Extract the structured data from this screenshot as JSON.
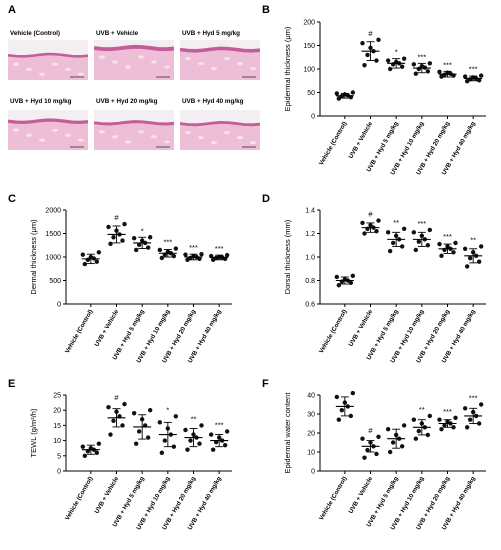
{
  "panel_a": {
    "letter": "A",
    "images": [
      {
        "label": "Vehicle (Control)",
        "thickness": 0.3
      },
      {
        "label": "UVB + Vehicle",
        "thickness": 0.75
      },
      {
        "label": "UVB + Hyd 5 mg/kg",
        "thickness": 0.65
      },
      {
        "label": "UVB + Hyd 10 mg/kg",
        "thickness": 0.55
      },
      {
        "label": "UVB + Hyd 20 mg/kg",
        "thickness": 0.45
      },
      {
        "label": "UVB + Hyd 40 mg/kg",
        "thickness": 0.4
      }
    ],
    "colors": {
      "tissue": "#f3cfe0",
      "epidermis": "#c45c98",
      "dermis": "#e7a9c9",
      "background": "#f2eef1"
    }
  },
  "categories": [
    "Vehicle (Control)",
    "UVB + Vehicle",
    "UVB + Hyd 5 mg/kg",
    "UVB + Hyd 10 mg/kg",
    "UVB + Hyd 20 mg/kg",
    "UVB + Hyd 40 mg/kg"
  ],
  "chart_data": [
    {
      "id": "B",
      "letter": "B",
      "type": "scatter",
      "ylabel": "Epidermal thickness (μm)",
      "ylim": [
        0,
        200
      ],
      "yticks": [
        "0",
        "50",
        "100",
        "150",
        "200"
      ],
      "ytick_values": [
        0,
        50,
        100,
        150,
        200
      ],
      "means": [
        43,
        138,
        112,
        102,
        89,
        80
      ],
      "errors": [
        5,
        20,
        10,
        10,
        6,
        5
      ],
      "significance": [
        "",
        "#",
        "*",
        "***",
        "***",
        "***"
      ],
      "points": [
        [
          37,
          40,
          42,
          44,
          46,
          48,
          50
        ],
        [
          108,
          118,
          130,
          138,
          145,
          155,
          162
        ],
        [
          100,
          105,
          110,
          112,
          115,
          118,
          122
        ],
        [
          90,
          95,
          100,
          103,
          106,
          110,
          112
        ],
        [
          84,
          86,
          88,
          90,
          92,
          94
        ],
        [
          74,
          76,
          78,
          80,
          82,
          84,
          86
        ]
      ]
    },
    {
      "id": "C",
      "letter": "C",
      "type": "scatter",
      "ylabel": "Dermal thickness (μm)",
      "ylim": [
        0,
        2000
      ],
      "yticks": [
        "0",
        "500",
        "1000",
        "1500",
        "2000"
      ],
      "ytick_values": [
        0,
        500,
        1000,
        1500,
        2000
      ],
      "means": [
        960,
        1480,
        1300,
        1080,
        1000,
        990
      ],
      "errors": [
        100,
        180,
        120,
        80,
        60,
        50
      ],
      "significance": [
        "",
        "#",
        "*",
        "***",
        "***",
        "***"
      ],
      "points": [
        [
          850,
          900,
          940,
          970,
          1000,
          1050,
          1100
        ],
        [
          1280,
          1350,
          1420,
          1480,
          1560,
          1640,
          1700
        ],
        [
          1150,
          1200,
          1260,
          1300,
          1350,
          1400,
          1420
        ],
        [
          980,
          1020,
          1050,
          1080,
          1110,
          1150,
          1180
        ],
        [
          940,
          960,
          980,
          1000,
          1020,
          1050,
          1060
        ],
        [
          940,
          960,
          980,
          990,
          1000,
          1020,
          1040
        ]
      ]
    },
    {
      "id": "D",
      "letter": "D",
      "type": "scatter",
      "ylabel": "Dorsal thickness (mm)",
      "ylim": [
        0.6,
        1.4
      ],
      "yticks": [
        "0.6",
        "0.8",
        "1.0",
        "1.2",
        "1.4"
      ],
      "ytick_values": [
        0.6,
        0.8,
        1.0,
        1.2,
        1.4
      ],
      "means": [
        0.8,
        1.25,
        1.15,
        1.15,
        1.07,
        1.01
      ],
      "errors": [
        0.03,
        0.04,
        0.06,
        0.06,
        0.04,
        0.06
      ],
      "significance": [
        "",
        "#",
        "**",
        "***",
        "***",
        "**"
      ],
      "points": [
        [
          0.76,
          0.78,
          0.79,
          0.8,
          0.81,
          0.83,
          0.84
        ],
        [
          1.2,
          1.22,
          1.24,
          1.25,
          1.27,
          1.29,
          1.31
        ],
        [
          1.05,
          1.09,
          1.12,
          1.15,
          1.18,
          1.21,
          1.24
        ],
        [
          1.06,
          1.1,
          1.13,
          1.15,
          1.18,
          1.21,
          1.23
        ],
        [
          1.01,
          1.04,
          1.06,
          1.07,
          1.09,
          1.11,
          1.12
        ],
        [
          0.92,
          0.96,
          0.99,
          1.01,
          1.04,
          1.07,
          1.09
        ]
      ]
    },
    {
      "id": "E",
      "letter": "E",
      "type": "scatter",
      "ylabel": "TEWL (g/m²/h)",
      "ylim": [
        0,
        25
      ],
      "yticks": [
        "0",
        "5",
        "10",
        "15",
        "20",
        "25"
      ],
      "ytick_values": [
        0,
        5,
        10,
        15,
        20,
        25
      ],
      "means": [
        7,
        17.5,
        14.5,
        12,
        11,
        10
      ],
      "errors": [
        1.5,
        3,
        4,
        4,
        3,
        2
      ],
      "significance": [
        "",
        "#",
        "",
        "*",
        "**",
        "***"
      ],
      "points": [
        [
          5,
          6,
          6.5,
          7,
          7.5,
          8,
          9
        ],
        [
          12,
          15,
          16.5,
          18,
          19.5,
          21,
          22
        ],
        [
          9,
          11,
          13,
          15,
          17,
          19,
          20
        ],
        [
          6,
          8,
          10,
          12,
          14,
          16,
          18
        ],
        [
          7,
          9,
          10,
          11,
          12,
          13.5,
          15
        ],
        [
          7,
          8.5,
          9.5,
          10,
          11,
          12,
          13
        ]
      ]
    },
    {
      "id": "F",
      "letter": "F",
      "type": "scatter",
      "ylabel": "Epidermal water content",
      "ylim": [
        0,
        40
      ],
      "yticks": [
        "0",
        "10",
        "20",
        "30",
        "40"
      ],
      "ytick_values": [
        0,
        10,
        20,
        30,
        40
      ],
      "means": [
        34,
        13,
        17,
        23,
        25,
        29
      ],
      "errors": [
        5,
        3,
        5,
        4,
        2,
        4
      ],
      "significance": [
        "",
        "#",
        "",
        "**",
        "***",
        "***"
      ],
      "points": [
        [
          27,
          29,
          32,
          34,
          36,
          39,
          41
        ],
        [
          7,
          9,
          11,
          13,
          15,
          17,
          18
        ],
        [
          10,
          13,
          15,
          17,
          19,
          22,
          24
        ],
        [
          17,
          19,
          21,
          23,
          25,
          27,
          29
        ],
        [
          22,
          23,
          24,
          25,
          26,
          27,
          28
        ],
        [
          23,
          25,
          27,
          29,
          31,
          33,
          35
        ]
      ]
    }
  ]
}
